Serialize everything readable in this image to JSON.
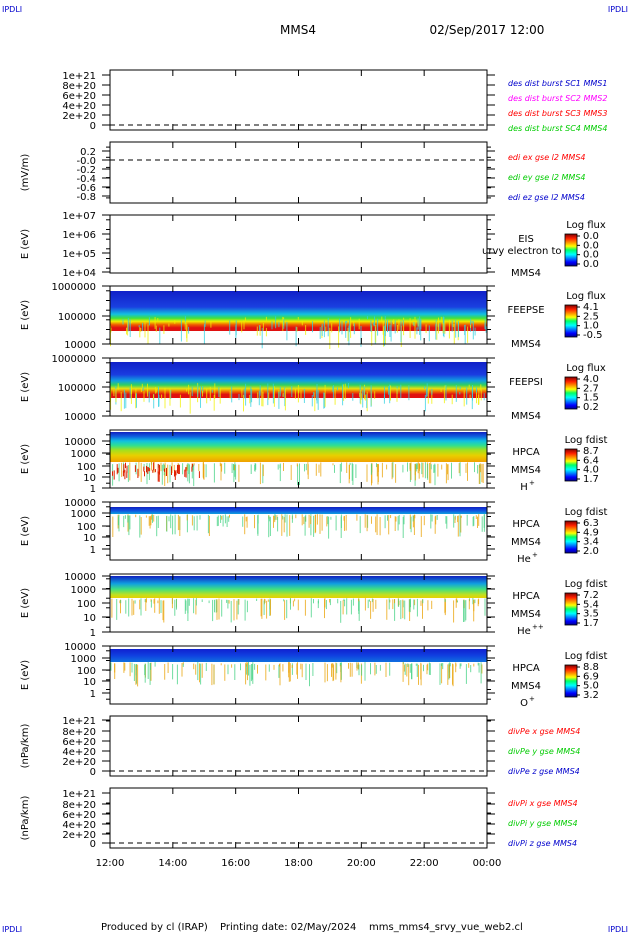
{
  "header": {
    "corner_label": "IPDLI",
    "spacecraft": "MMS4",
    "datetime": "02/Sep/2017 12:00"
  },
  "footer": {
    "produced_by": "Produced by cl (IRAP)",
    "printing_date": "Printing date: 02/May/2024",
    "script": "mms_mms4_srvy_vue_web2.cl"
  },
  "time_axis": {
    "labels": [
      "12:00",
      "14:00",
      "16:00",
      "18:00",
      "20:00",
      "22:00",
      "00:00"
    ]
  },
  "colors": {
    "red": "#ff0000",
    "green": "#00cc00",
    "blue": "#0000cc",
    "magenta": "#ff00ff"
  },
  "chart_data": [
    {
      "type": "line",
      "id": "des-dist",
      "ylabel": "",
      "ytick_labels": [
        "1e+21",
        "8e+20",
        "6e+20",
        "4e+20",
        "2e+20",
        "0"
      ],
      "legend": [
        {
          "name": "des dist burst SC1 MMS1",
          "color": "#0000cc"
        },
        {
          "name": "des dist burst SC2 MMS2",
          "color": "#ff00ff"
        },
        {
          "name": "des dist burst SC3 MMS3",
          "color": "#ff0000"
        },
        {
          "name": "des dist burst SC4 MMS4",
          "color": "#00cc00"
        }
      ]
    },
    {
      "type": "line",
      "id": "edi-e",
      "ylabel": "(mV/m)",
      "ytick_labels": [
        "0.2",
        "-0.0",
        "-0.2",
        "-0.4",
        "-0.6",
        "-0.8"
      ],
      "legend": [
        {
          "name": "edi ex gse l2 MMS4",
          "color": "#ff0000"
        },
        {
          "name": "edi ey gse l2 MMS4",
          "color": "#00cc00"
        },
        {
          "name": "edi ez gse l2 MMS4",
          "color": "#0000cc"
        }
      ]
    },
    {
      "type": "heatmap",
      "id": "eis",
      "ylabel": "E (eV)",
      "ytick_labels": [
        "1e+07",
        "1e+06",
        "1e+05",
        "1e+04"
      ],
      "instrument": "EIS",
      "sc": "MMS4",
      "overlay_text": "urvy electron to",
      "cbar_title": "Log flux",
      "cbar_ticks": [
        "0.0",
        "0.0",
        "0.0",
        "0.0"
      ]
    },
    {
      "type": "heatmap",
      "id": "feeps-e",
      "ylabel": "E (eV)",
      "ytick_labels": [
        "1000000",
        "100000",
        "10000"
      ],
      "instrument": "FEEPSE",
      "sc": "MMS4",
      "cbar_title": "Log flux",
      "cbar_ticks": [
        "4.1",
        "2.5",
        "1.0",
        "-0.5"
      ]
    },
    {
      "type": "heatmap",
      "id": "feeps-i",
      "ylabel": "E (eV)",
      "ytick_labels": [
        "1000000",
        "100000",
        "10000"
      ],
      "instrument": "FEEPSI",
      "sc": "MMS4",
      "cbar_title": "Log flux",
      "cbar_ticks": [
        "4.0",
        "2.7",
        "1.5",
        "0.2"
      ]
    },
    {
      "type": "heatmap",
      "id": "hpca-h",
      "ylabel": "E (eV)",
      "ytick_labels": [
        "10000",
        "1000",
        "100",
        "10",
        "1"
      ],
      "instrument": "HPCA",
      "sc": "MMS4",
      "species": "H",
      "charge": "+",
      "cbar_title": "Log fdist",
      "cbar_ticks": [
        "8.7",
        "6.4",
        "4.0",
        "1.7"
      ]
    },
    {
      "type": "heatmap",
      "id": "hpca-he1",
      "ylabel": "E (eV)",
      "ytick_labels": [
        "10000",
        "1000",
        "100",
        "10",
        "1"
      ],
      "instrument": "HPCA",
      "sc": "MMS4",
      "species": "He",
      "charge": "+",
      "cbar_title": "Log fdist",
      "cbar_ticks": [
        "6.3",
        "4.9",
        "3.4",
        "2.0"
      ]
    },
    {
      "type": "heatmap",
      "id": "hpca-he2",
      "ylabel": "E (eV)",
      "ytick_labels": [
        "10000",
        "1000",
        "100",
        "10",
        "1"
      ],
      "instrument": "HPCA",
      "sc": "MMS4",
      "species": "He",
      "charge": "++",
      "cbar_title": "Log fdist",
      "cbar_ticks": [
        "7.2",
        "5.4",
        "3.5",
        "1.7"
      ]
    },
    {
      "type": "heatmap",
      "id": "hpca-o",
      "ylabel": "E (eV)",
      "ytick_labels": [
        "10000",
        "1000",
        "100",
        "10",
        "1"
      ],
      "instrument": "HPCA",
      "sc": "MMS4",
      "species": "O",
      "charge": "+",
      "cbar_title": "Log fdist",
      "cbar_ticks": [
        "8.8",
        "6.9",
        "5.0",
        "3.2"
      ]
    },
    {
      "type": "line",
      "id": "divpe",
      "ylabel": "(nPa/km)",
      "ytick_labels": [
        "1e+21",
        "8e+20",
        "6e+20",
        "4e+20",
        "2e+20",
        "0"
      ],
      "legend": [
        {
          "name": "divPe x gse MMS4",
          "color": "#ff0000"
        },
        {
          "name": "divPe y gse MMS4",
          "color": "#00cc00"
        },
        {
          "name": "divPe z gse MMS4",
          "color": "#0000cc"
        }
      ]
    },
    {
      "type": "line",
      "id": "divpi",
      "ylabel": "(nPa/km)",
      "ytick_labels": [
        "1e+21",
        "8e+20",
        "6e+20",
        "4e+20",
        "2e+20",
        "0"
      ],
      "legend": [
        {
          "name": "divPi x gse MMS4",
          "color": "#ff0000"
        },
        {
          "name": "divPi y gse MMS4",
          "color": "#00cc00"
        },
        {
          "name": "divPi z gse MMS4",
          "color": "#0000cc"
        }
      ]
    }
  ]
}
